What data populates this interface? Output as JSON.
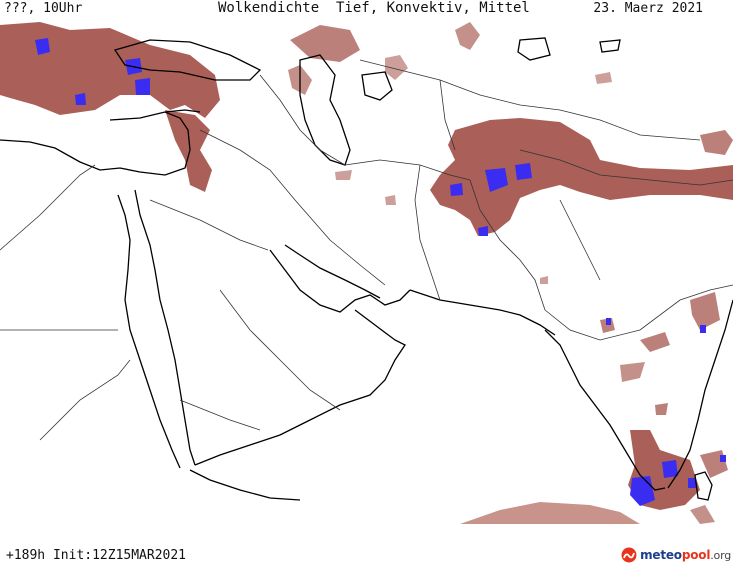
{
  "header": {
    "location": "???, 10Uhr",
    "title": "Wolkendichte  Tief, Konvektiv, Mittel",
    "date": "23. Maerz 2021"
  },
  "footer": {
    "run": "+189h Init:12Z15MAR2021",
    "logo": {
      "part1": "meteo",
      "part2": "pool",
      "part3": ".org"
    }
  },
  "colors": {
    "cloud": "#a3524a",
    "cloud_light": "#c48a80",
    "convective": "#3a2cf0",
    "coast": "#000000",
    "border": "#333333"
  }
}
